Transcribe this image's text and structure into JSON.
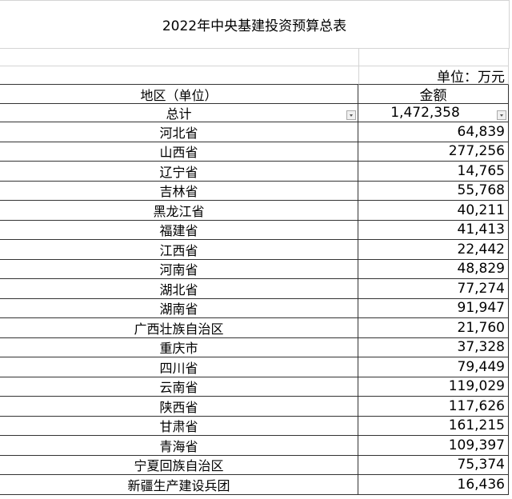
{
  "title": "2022年中央基建投资预算总表",
  "unit_label": "单位：万元",
  "headers": {
    "region": "地区（单位）",
    "amount": "金额"
  },
  "total": {
    "label": "总计",
    "value": "1,472,358"
  },
  "rows": [
    {
      "region": "河北省",
      "amount": "64,839"
    },
    {
      "region": "山西省",
      "amount": "277,256"
    },
    {
      "region": "辽宁省",
      "amount": "14,765"
    },
    {
      "region": "吉林省",
      "amount": "55,768"
    },
    {
      "region": "黑龙江省",
      "amount": "40,211"
    },
    {
      "region": "福建省",
      "amount": "41,413"
    },
    {
      "region": "江西省",
      "amount": "22,442"
    },
    {
      "region": "河南省",
      "amount": "48,829"
    },
    {
      "region": "湖北省",
      "amount": "77,274"
    },
    {
      "region": "湖南省",
      "amount": "91,947"
    },
    {
      "region": "广西壮族自治区",
      "amount": "21,760"
    },
    {
      "region": "重庆市",
      "amount": "37,328"
    },
    {
      "region": "四川省",
      "amount": "79,449"
    },
    {
      "region": "云南省",
      "amount": "119,029"
    },
    {
      "region": "陕西省",
      "amount": "117,626"
    },
    {
      "region": "甘肃省",
      "amount": "161,215"
    },
    {
      "region": "青海省",
      "amount": "109,397"
    },
    {
      "region": "宁夏回族自治区",
      "amount": "75,374"
    },
    {
      "region": "新疆生产建设兵团",
      "amount": "16,436"
    }
  ]
}
